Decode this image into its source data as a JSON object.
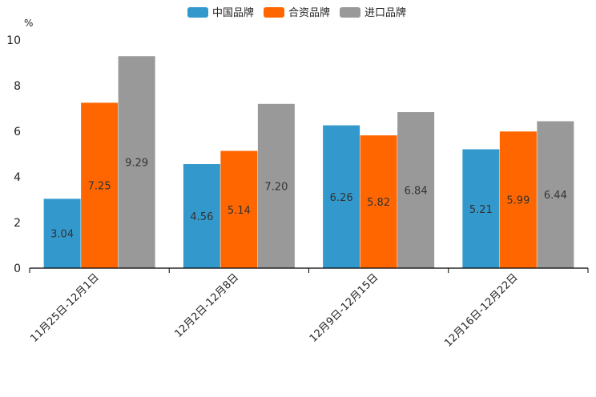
{
  "chart_data": {
    "type": "bar",
    "title": "",
    "xlabel": "",
    "ylabel": "%",
    "ylim": [
      0,
      10
    ],
    "yticks": [
      0,
      2,
      4,
      6,
      8,
      10
    ],
    "legend_position": "top-center",
    "grid": false,
    "categories": [
      "11月25日-12月1日",
      "12月2日-12月8日",
      "12月9日-12月15日",
      "12月16日-12月22日"
    ],
    "series": [
      {
        "name": "中国品牌",
        "color": "#3399cc",
        "values": [
          3.04,
          4.56,
          6.26,
          5.21
        ],
        "labels": [
          "3.04",
          "4.56",
          "6.26",
          "5.21"
        ]
      },
      {
        "name": "合资品牌",
        "color": "#ff6600",
        "values": [
          7.25,
          5.14,
          5.82,
          5.99
        ],
        "labels": [
          "7.25",
          "5.14",
          "5.82",
          "5.99"
        ]
      },
      {
        "name": "进口品牌",
        "color": "#999999",
        "values": [
          9.29,
          7.2,
          6.84,
          6.44
        ],
        "labels": [
          "9.29",
          "7.20",
          "6.84",
          "6.44"
        ]
      }
    ]
  }
}
